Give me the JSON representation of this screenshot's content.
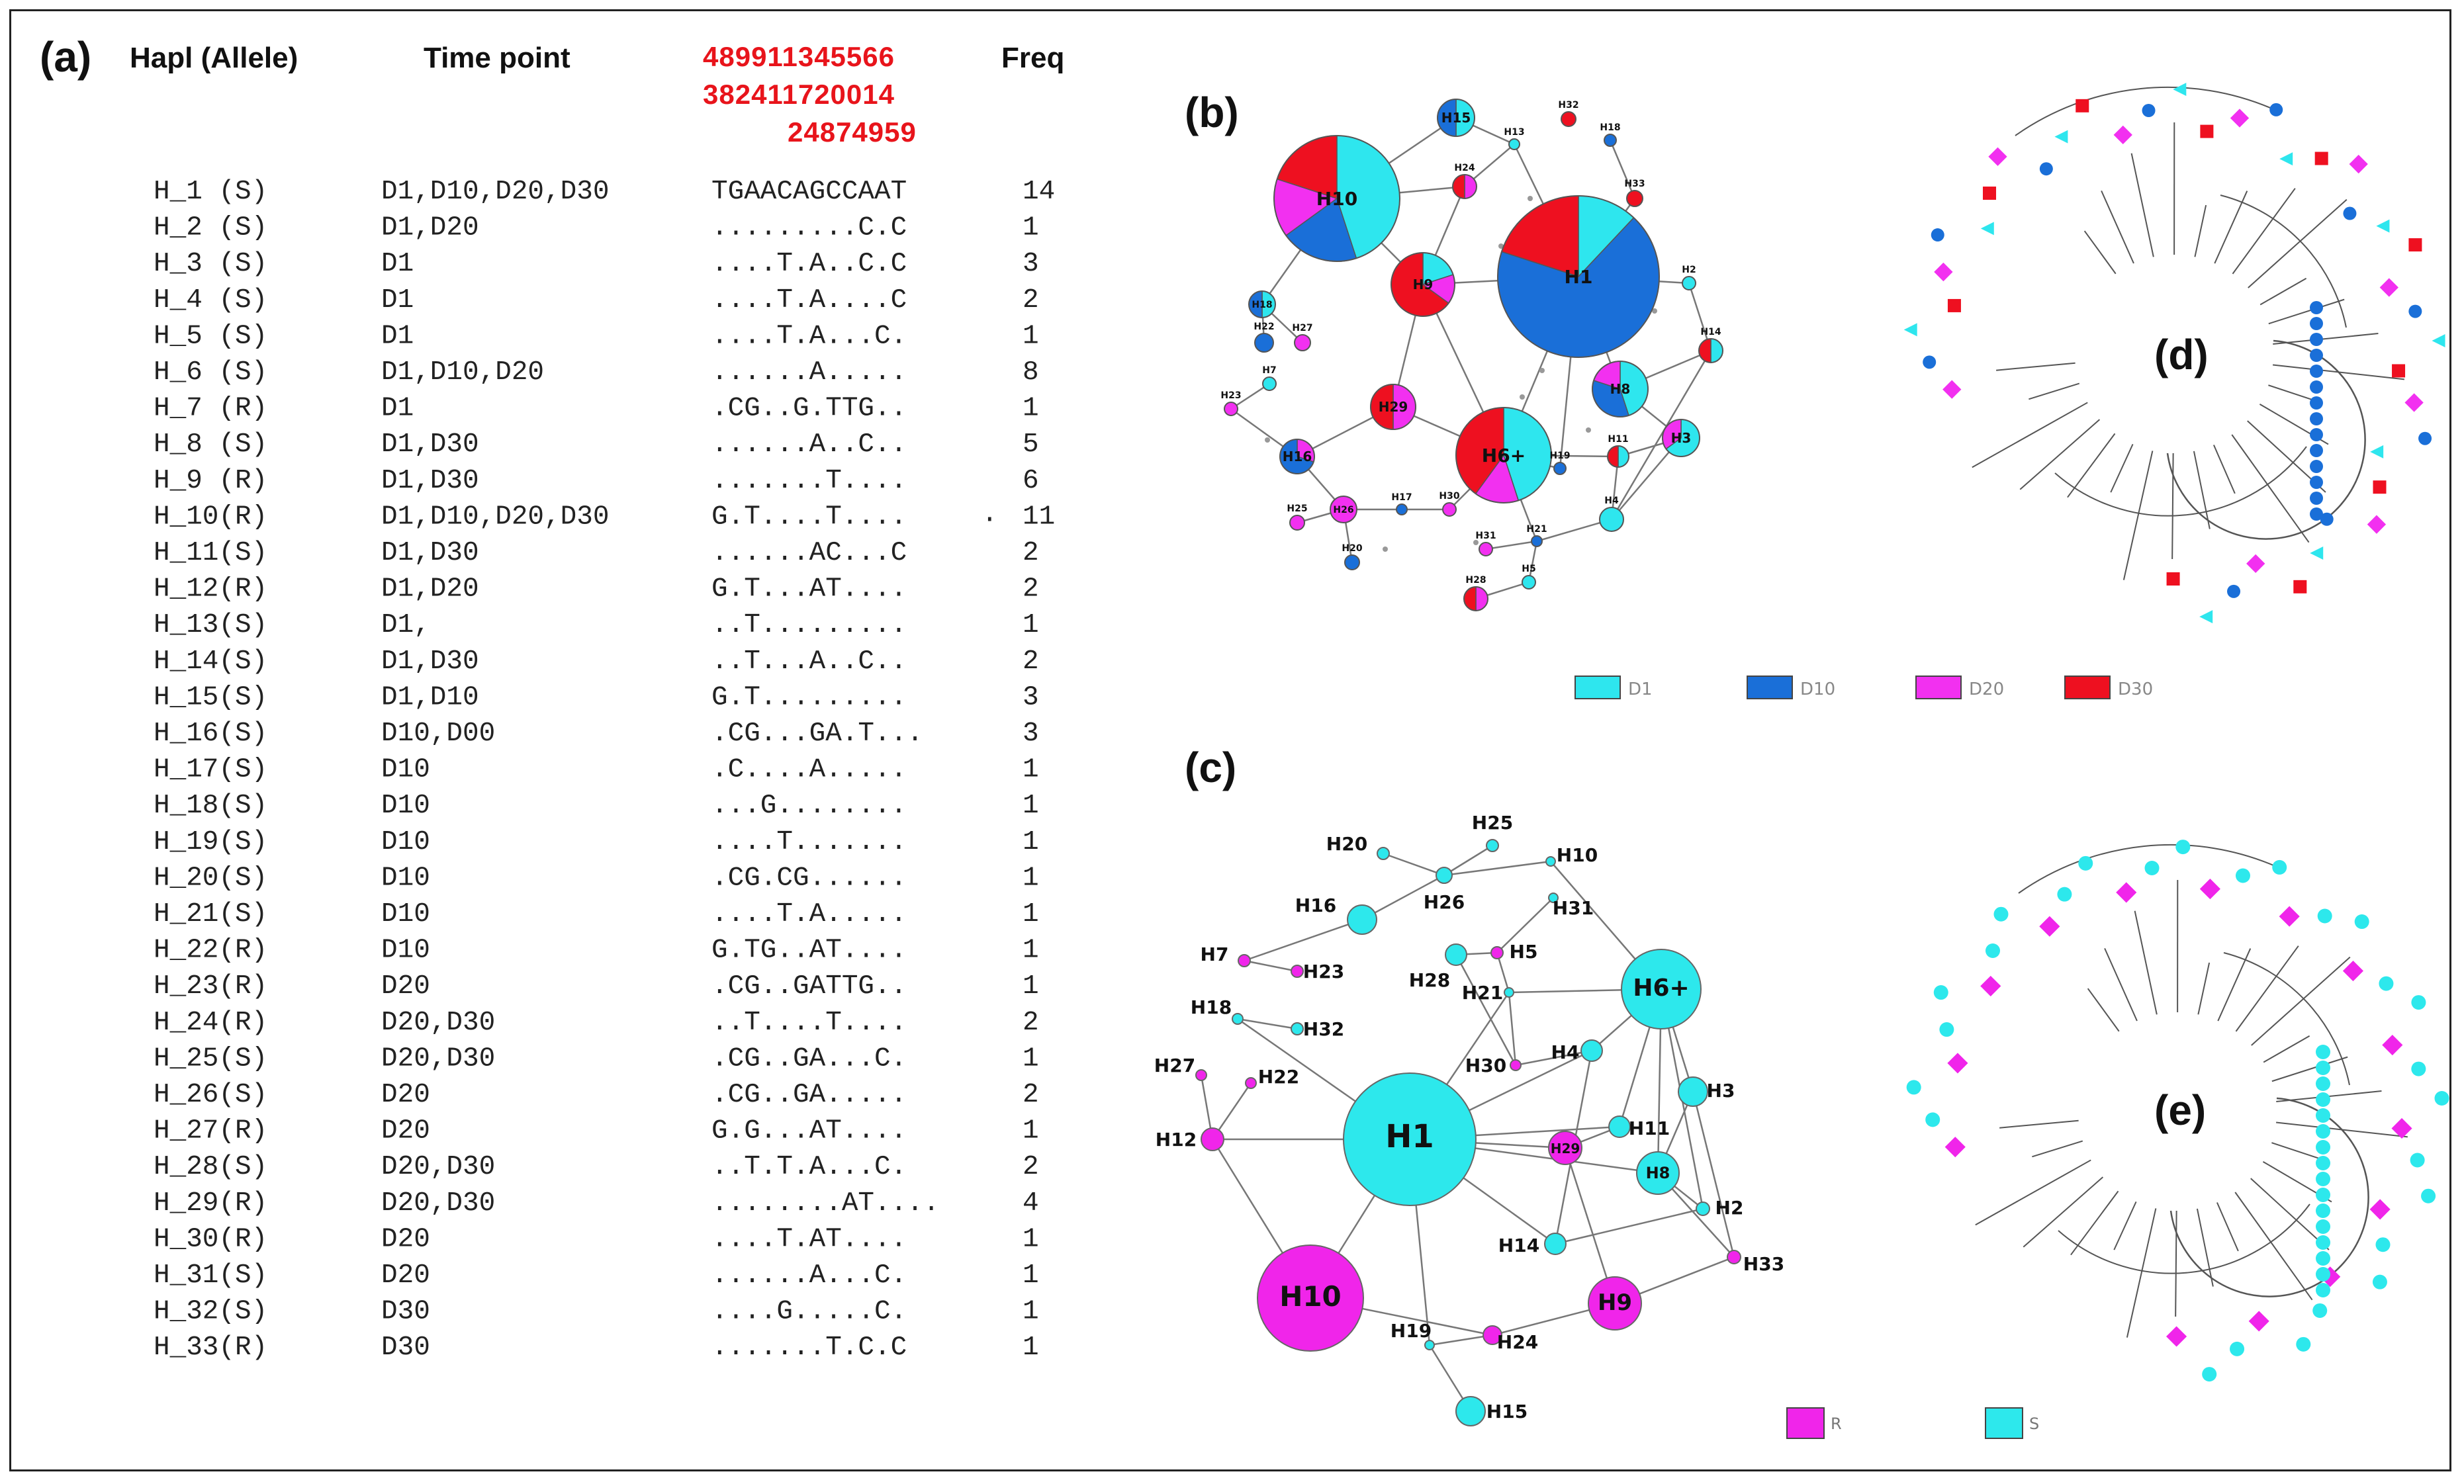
{
  "table": {
    "panel_label": "(a)",
    "headers": {
      "haplotype": "Hapl (Allele)",
      "time_point": "Time point",
      "freq": "Freq"
    },
    "positions": [
      "489911345566",
      "382411720014",
      "24874959"
    ],
    "stray_mark": ".",
    "rows": [
      {
        "hap": "H_1 (S)",
        "time": "D1,D10,D20,D30",
        "seq": "TGAACAGCCAAT",
        "freq": "14"
      },
      {
        "hap": "H_2 (S)",
        "time": "D1,D20",
        "seq": ".........C.C",
        "freq": "1"
      },
      {
        "hap": "H_3 (S)",
        "time": "D1",
        "seq": "....T.A..C.C",
        "freq": "3"
      },
      {
        "hap": "H_4 (S)",
        "time": "D1",
        "seq": "....T.A....C",
        "freq": "2"
      },
      {
        "hap": "H_5 (S)",
        "time": "D1",
        "seq": "....T.A...C.",
        "freq": "1"
      },
      {
        "hap": "H_6 (S)",
        "time": "D1,D10,D20",
        "seq": "......A.....",
        "freq": "8"
      },
      {
        "hap": "H_7 (R)",
        "time": "D1",
        "seq": ".CG..G.TTG..",
        "freq": "1"
      },
      {
        "hap": "H_8 (S)",
        "time": "D1,D30",
        "seq": "......A..C..",
        "freq": "5"
      },
      {
        "hap": "H_9 (R)",
        "time": "D1,D30",
        "seq": ".......T....",
        "freq": "6"
      },
      {
        "hap": "H_10(R)",
        "time": "D1,D10,D20,D30",
        "seq": "G.T....T....",
        "freq": "11"
      },
      {
        "hap": "H_11(S)",
        "time": "D1,D30",
        "seq": "......AC...C",
        "freq": "2"
      },
      {
        "hap": "H_12(R)",
        "time": "D1,D20",
        "seq": "G.T...AT....",
        "freq": "2"
      },
      {
        "hap": "H_13(S)",
        "time": "D1,",
        "seq": "..T.........",
        "freq": "1"
      },
      {
        "hap": "H_14(S)",
        "time": "D1,D30",
        "seq": "..T...A..C..",
        "freq": "2"
      },
      {
        "hap": "H_15(S)",
        "time": "D1,D10",
        "seq": "G.T.........",
        "freq": "3"
      },
      {
        "hap": "H_16(S)",
        "time": "D10,D00",
        "seq": ".CG...GA.T...",
        "freq": "3"
      },
      {
        "hap": "H_17(S)",
        "time": "D10",
        "seq": ".C....A.....",
        "freq": "1"
      },
      {
        "hap": "H_18(S)",
        "time": "D10",
        "seq": "...G........",
        "freq": "1"
      },
      {
        "hap": "H_19(S)",
        "time": "D10",
        "seq": "....T.......",
        "freq": "1"
      },
      {
        "hap": "H_20(S)",
        "time": "D10",
        "seq": ".CG.CG......",
        "freq": "1"
      },
      {
        "hap": "H_21(S)",
        "time": "D10",
        "seq": "....T.A.....",
        "freq": "1"
      },
      {
        "hap": "H_22(R)",
        "time": "D10",
        "seq": "G.TG..AT....",
        "freq": "1"
      },
      {
        "hap": "H_23(R)",
        "time": "D20",
        "seq": ".CG..GATTG..",
        "freq": "1"
      },
      {
        "hap": "H_24(R)",
        "time": "D20,D30",
        "seq": "..T....T....",
        "freq": "2"
      },
      {
        "hap": "H_25(S)",
        "time": "D20,D30",
        "seq": ".CG..GA...C.",
        "freq": "1"
      },
      {
        "hap": "H_26(S)",
        "time": "D20",
        "seq": ".CG..GA.....",
        "freq": "2"
      },
      {
        "hap": "H_27(R)",
        "time": "D20",
        "seq": "G.G...AT....",
        "freq": "1"
      },
      {
        "hap": "H_28(S)",
        "time": "D20,D30",
        "seq": "..T.T.A...C.",
        "freq": "2"
      },
      {
        "hap": "H_29(R)",
        "time": "D20,D30",
        "seq": "........AT....",
        "freq": "4"
      },
      {
        "hap": "H_30(R)",
        "time": "D20",
        "seq": "....T.AT....",
        "freq": "1"
      },
      {
        "hap": "H_31(S)",
        "time": "D20",
        "seq": "......A...C.",
        "freq": "1"
      },
      {
        "hap": "H_32(S)",
        "time": "D30",
        "seq": "....G.....C.",
        "freq": "1"
      },
      {
        "hap": "H_33(R)",
        "time": "D30",
        "seq": ".......T.C.C",
        "freq": "1"
      }
    ]
  },
  "network_b": {
    "panel_label": "(b)",
    "colors": {
      "D1": "#2ee6ee",
      "D10": "#1a6fd8",
      "D20": "#f230f0",
      "D30": "#ee1020"
    },
    "legend": [
      {
        "key": "D1",
        "label": "D1"
      },
      {
        "key": "D10",
        "label": "D10"
      },
      {
        "key": "D20",
        "label": "D20"
      },
      {
        "key": "D30",
        "label": "D30"
      }
    ]
  },
  "network_c": {
    "panel_label": "(c)",
    "colors": {
      "R": "#f025ea",
      "S": "#2de8ec"
    },
    "legend": [
      {
        "key": "R",
        "label": "R"
      },
      {
        "key": "S",
        "label": "S"
      }
    ]
  },
  "tree_d": {
    "panel_label": "(d)"
  },
  "tree_e": {
    "panel_label": "(e)"
  }
}
